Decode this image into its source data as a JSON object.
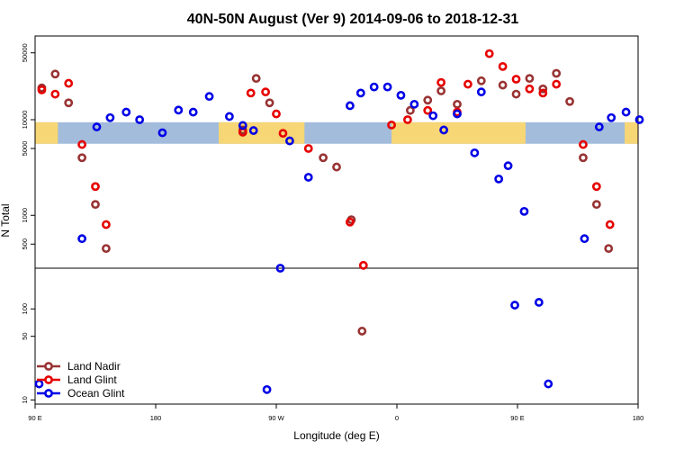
{
  "chart_data": {
    "type": "scatter",
    "title": "40N-50N August (Ver 9)   2014-09-06 to 2018-12-31",
    "xlabel": "Longitude (deg E)",
    "ylabel": "N Total",
    "x_scale": "longitude",
    "xlim": [
      90,
      540
    ],
    "x_ticks": [
      {
        "value": 90,
        "label": "90 E"
      },
      {
        "value": 180,
        "label": "180"
      },
      {
        "value": 270,
        "label": "90 W"
      },
      {
        "value": 360,
        "label": "0"
      },
      {
        "value": 450,
        "label": "90 E"
      },
      {
        "value": 540,
        "label": "180"
      }
    ],
    "y_scale": "log",
    "ylim": [
      9,
      75000
    ],
    "y_break": 280,
    "y_ticks_upper": [
      {
        "value": 500,
        "label": "500"
      },
      {
        "value": 1000,
        "label": "1000"
      },
      {
        "value": 5000,
        "label": "5000"
      },
      {
        "value": 10000,
        "label": "10000"
      },
      {
        "value": 50000,
        "label": "50000"
      }
    ],
    "y_ticks_lower": [
      {
        "value": 10,
        "label": "10"
      },
      {
        "value": 50,
        "label": "50"
      },
      {
        "value": 100,
        "label": "100"
      }
    ],
    "legend_position": "bottom-left",
    "background_map": {
      "lat_band": "40N-50N",
      "land_color": "#f7d675",
      "ocean_color": "#a3bcdc"
    },
    "series": [
      {
        "name": "Land Nadir",
        "color": "#993333",
        "points": [
          [
            95,
            21500
          ],
          [
            105,
            30000
          ],
          [
            115,
            15000
          ],
          [
            125,
            4000
          ],
          [
            135,
            1300
          ],
          [
            143,
            450
          ],
          [
            305,
            4000
          ],
          [
            315,
            3200
          ],
          [
            326,
            900
          ],
          [
            245,
            7800
          ],
          [
            255,
            27000
          ],
          [
            265,
            15000
          ],
          [
            370,
            12500
          ],
          [
            383,
            16000
          ],
          [
            393,
            20000
          ],
          [
            405,
            14500
          ],
          [
            423,
            25500
          ],
          [
            439,
            23000
          ],
          [
            449,
            18500
          ],
          [
            459,
            27000
          ],
          [
            469,
            21000
          ],
          [
            479,
            30500
          ],
          [
            489,
            15500
          ],
          [
            499,
            4000
          ],
          [
            509,
            1300
          ],
          [
            518,
            450
          ],
          [
            334,
            57
          ]
        ]
      },
      {
        "name": "Land Glint",
        "color": "#e60000",
        "points": [
          [
            95,
            20500
          ],
          [
            105,
            18500
          ],
          [
            115,
            24000
          ],
          [
            125,
            5500
          ],
          [
            135,
            2000
          ],
          [
            143,
            800
          ],
          [
            245,
            7400
          ],
          [
            251,
            19000
          ],
          [
            262,
            19500
          ],
          [
            270,
            11500
          ],
          [
            275,
            7200
          ],
          [
            294,
            5000
          ],
          [
            325,
            850
          ],
          [
            335,
            300
          ],
          [
            356,
            8800
          ],
          [
            368,
            10000
          ],
          [
            383,
            12500
          ],
          [
            393,
            24500
          ],
          [
            405,
            12000
          ],
          [
            413,
            23500
          ],
          [
            429,
            49000
          ],
          [
            439,
            36000
          ],
          [
            449,
            26500
          ],
          [
            459,
            21000
          ],
          [
            469,
            19000
          ],
          [
            479,
            23500
          ],
          [
            499,
            5500
          ],
          [
            509,
            2000
          ],
          [
            519,
            800
          ]
        ]
      },
      {
        "name": "Ocean Glint",
        "color": "#0000e6",
        "points": [
          [
            93,
            15
          ],
          [
            125,
            570
          ],
          [
            136,
            8400
          ],
          [
            146,
            10500
          ],
          [
            158,
            12000
          ],
          [
            168,
            10000
          ],
          [
            185,
            7300
          ],
          [
            197,
            12600
          ],
          [
            208,
            12000
          ],
          [
            220,
            17500
          ],
          [
            235,
            10800
          ],
          [
            245,
            8700
          ],
          [
            253,
            7700
          ],
          [
            263,
            13
          ],
          [
            273,
            280
          ],
          [
            280,
            6000
          ],
          [
            294,
            2500
          ],
          [
            325,
            14000
          ],
          [
            333,
            19000
          ],
          [
            343,
            22000
          ],
          [
            353,
            22000
          ],
          [
            363,
            18000
          ],
          [
            373,
            14500
          ],
          [
            387,
            11000
          ],
          [
            395,
            7800
          ],
          [
            405,
            11500
          ],
          [
            418,
            4500
          ],
          [
            423,
            19500
          ],
          [
            436,
            2400
          ],
          [
            443,
            3300
          ],
          [
            448,
            110
          ],
          [
            455,
            1100
          ],
          [
            466,
            118
          ],
          [
            473,
            15
          ],
          [
            500,
            570
          ],
          [
            511,
            8400
          ],
          [
            520,
            10500
          ],
          [
            531,
            12000
          ],
          [
            541,
            10000
          ],
          [
            551,
            7300
          ]
        ]
      }
    ]
  }
}
